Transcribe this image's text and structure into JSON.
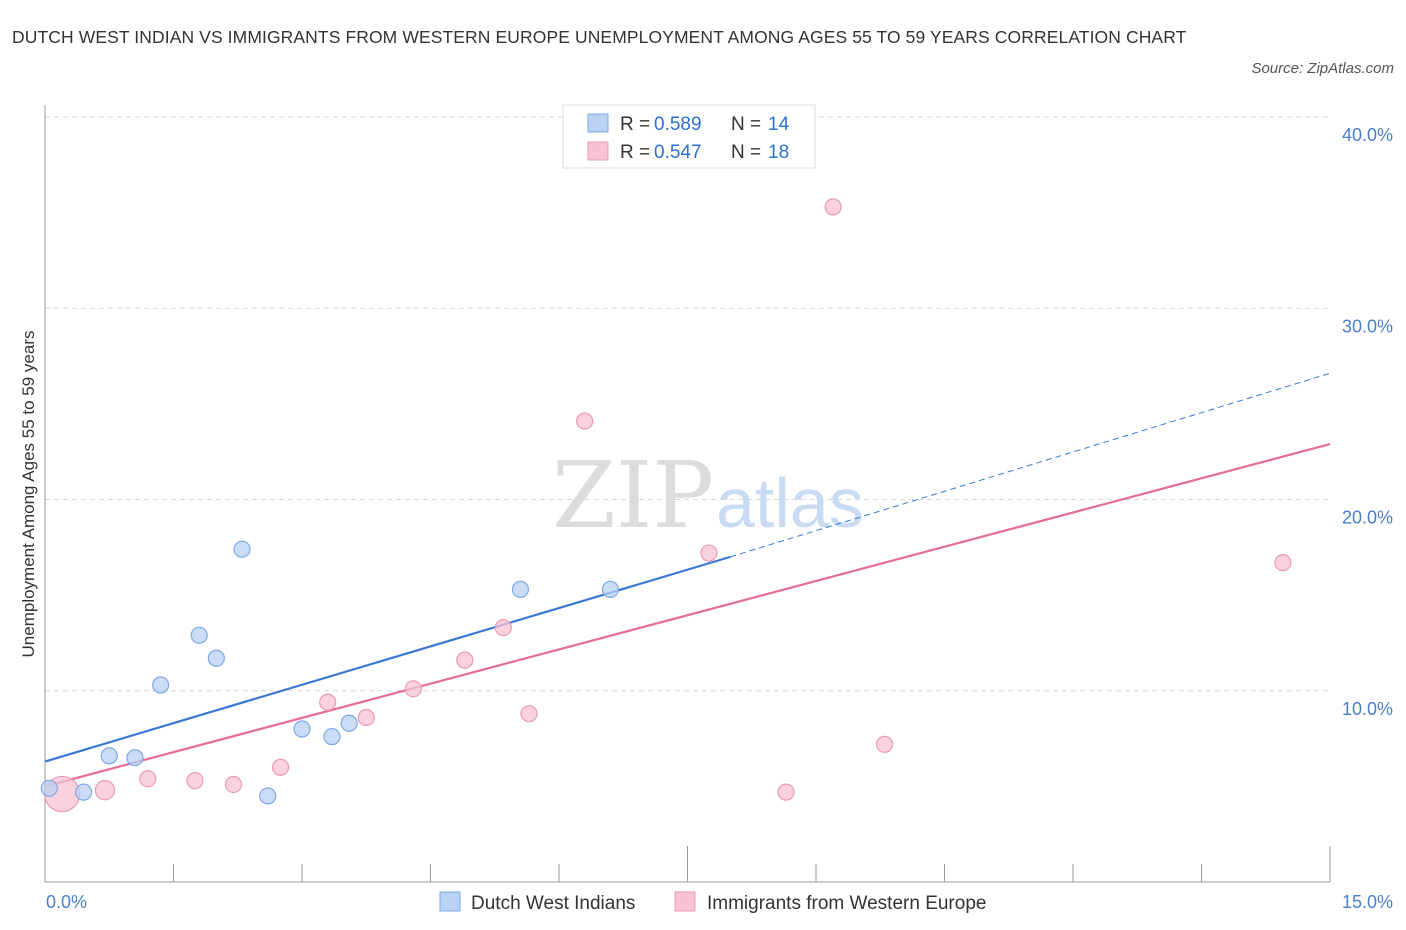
{
  "title": "DUTCH WEST INDIAN VS IMMIGRANTS FROM WESTERN EUROPE UNEMPLOYMENT AMONG AGES 55 TO 59 YEARS CORRELATION CHART",
  "source": "Source: ZipAtlas.com",
  "watermark": {
    "zip": "ZIP",
    "atlas": "atlas"
  },
  "colors": {
    "blue": "#3b78d4",
    "blue_fill": "#b9d1f3",
    "pink": "#e46c96",
    "pink_fill": "#f7c3d3",
    "axis_text": "#4a7fcc",
    "grid": "#d8d8d8"
  },
  "legend": {
    "rows": [
      {
        "r_label": "R = ",
        "r_value": "0.589",
        "n_label": "N = ",
        "n_value": "14"
      },
      {
        "r_label": "R = ",
        "r_value": "0.547",
        "n_label": "N = ",
        "n_value": "18"
      }
    ]
  },
  "chart_data": {
    "type": "scatter",
    "title": "DUTCH WEST INDIAN VS IMMIGRANTS FROM WESTERN EUROPE UNEMPLOYMENT AMONG AGES 55 TO 59 YEARS CORRELATION CHART",
    "xlabel": "",
    "ylabel": "Unemployment Among Ages 55 to 59 years",
    "xlim": [
      0,
      15
    ],
    "ylim": [
      0,
      40
    ],
    "x_tick_labels": [
      "0.0%",
      "15.0%"
    ],
    "y_ticks": [
      10,
      20,
      30,
      40
    ],
    "y_tick_labels": [
      "10.0%",
      "20.0%",
      "30.0%",
      "40.0%"
    ],
    "grid": true,
    "series": [
      {
        "name": "Dutch West Indians",
        "color": "#3b78d4",
        "points": [
          {
            "x": 0.05,
            "y": 4.9,
            "size": 1
          },
          {
            "x": 0.45,
            "y": 4.7,
            "size": 1
          },
          {
            "x": 0.75,
            "y": 6.6,
            "size": 1
          },
          {
            "x": 1.05,
            "y": 6.5,
            "size": 1
          },
          {
            "x": 1.35,
            "y": 10.3,
            "size": 1
          },
          {
            "x": 1.8,
            "y": 12.9,
            "size": 1
          },
          {
            "x": 2.0,
            "y": 11.7,
            "size": 1
          },
          {
            "x": 2.3,
            "y": 17.4,
            "size": 1
          },
          {
            "x": 2.6,
            "y": 4.5,
            "size": 1
          },
          {
            "x": 3.0,
            "y": 8.0,
            "size": 1
          },
          {
            "x": 3.35,
            "y": 7.6,
            "size": 1
          },
          {
            "x": 3.55,
            "y": 8.3,
            "size": 1
          },
          {
            "x": 5.55,
            "y": 15.3,
            "size": 1
          },
          {
            "x": 6.6,
            "y": 15.3,
            "size": 1
          }
        ],
        "trend": {
          "x0": 0,
          "y0": 6.3,
          "x1": 8.0,
          "y1": 17.0,
          "dash_x1": 15,
          "dash_y1": 26.6
        }
      },
      {
        "name": "Immigrants from Western Europe",
        "color": "#e46c96",
        "points": [
          {
            "x": 0.2,
            "y": 4.6,
            "size": 2.2
          },
          {
            "x": 0.7,
            "y": 4.8,
            "size": 1.2
          },
          {
            "x": 1.2,
            "y": 5.4,
            "size": 1
          },
          {
            "x": 1.75,
            "y": 5.3,
            "size": 1
          },
          {
            "x": 2.2,
            "y": 5.1,
            "size": 1
          },
          {
            "x": 2.75,
            "y": 6.0,
            "size": 1
          },
          {
            "x": 3.3,
            "y": 9.4,
            "size": 1
          },
          {
            "x": 3.75,
            "y": 8.6,
            "size": 1
          },
          {
            "x": 4.3,
            "y": 10.1,
            "size": 1
          },
          {
            "x": 4.9,
            "y": 11.6,
            "size": 1
          },
          {
            "x": 5.35,
            "y": 13.3,
            "size": 1
          },
          {
            "x": 5.65,
            "y": 8.8,
            "size": 1
          },
          {
            "x": 6.3,
            "y": 24.1,
            "size": 1
          },
          {
            "x": 7.75,
            "y": 17.2,
            "size": 1
          },
          {
            "x": 8.65,
            "y": 4.7,
            "size": 1
          },
          {
            "x": 9.2,
            "y": 35.3,
            "size": 1
          },
          {
            "x": 9.8,
            "y": 7.2,
            "size": 1
          },
          {
            "x": 14.45,
            "y": 16.7,
            "size": 1
          }
        ],
        "trend": {
          "x0": 0,
          "y0": 5.0,
          "x1": 15,
          "y1": 22.9
        }
      }
    ]
  }
}
